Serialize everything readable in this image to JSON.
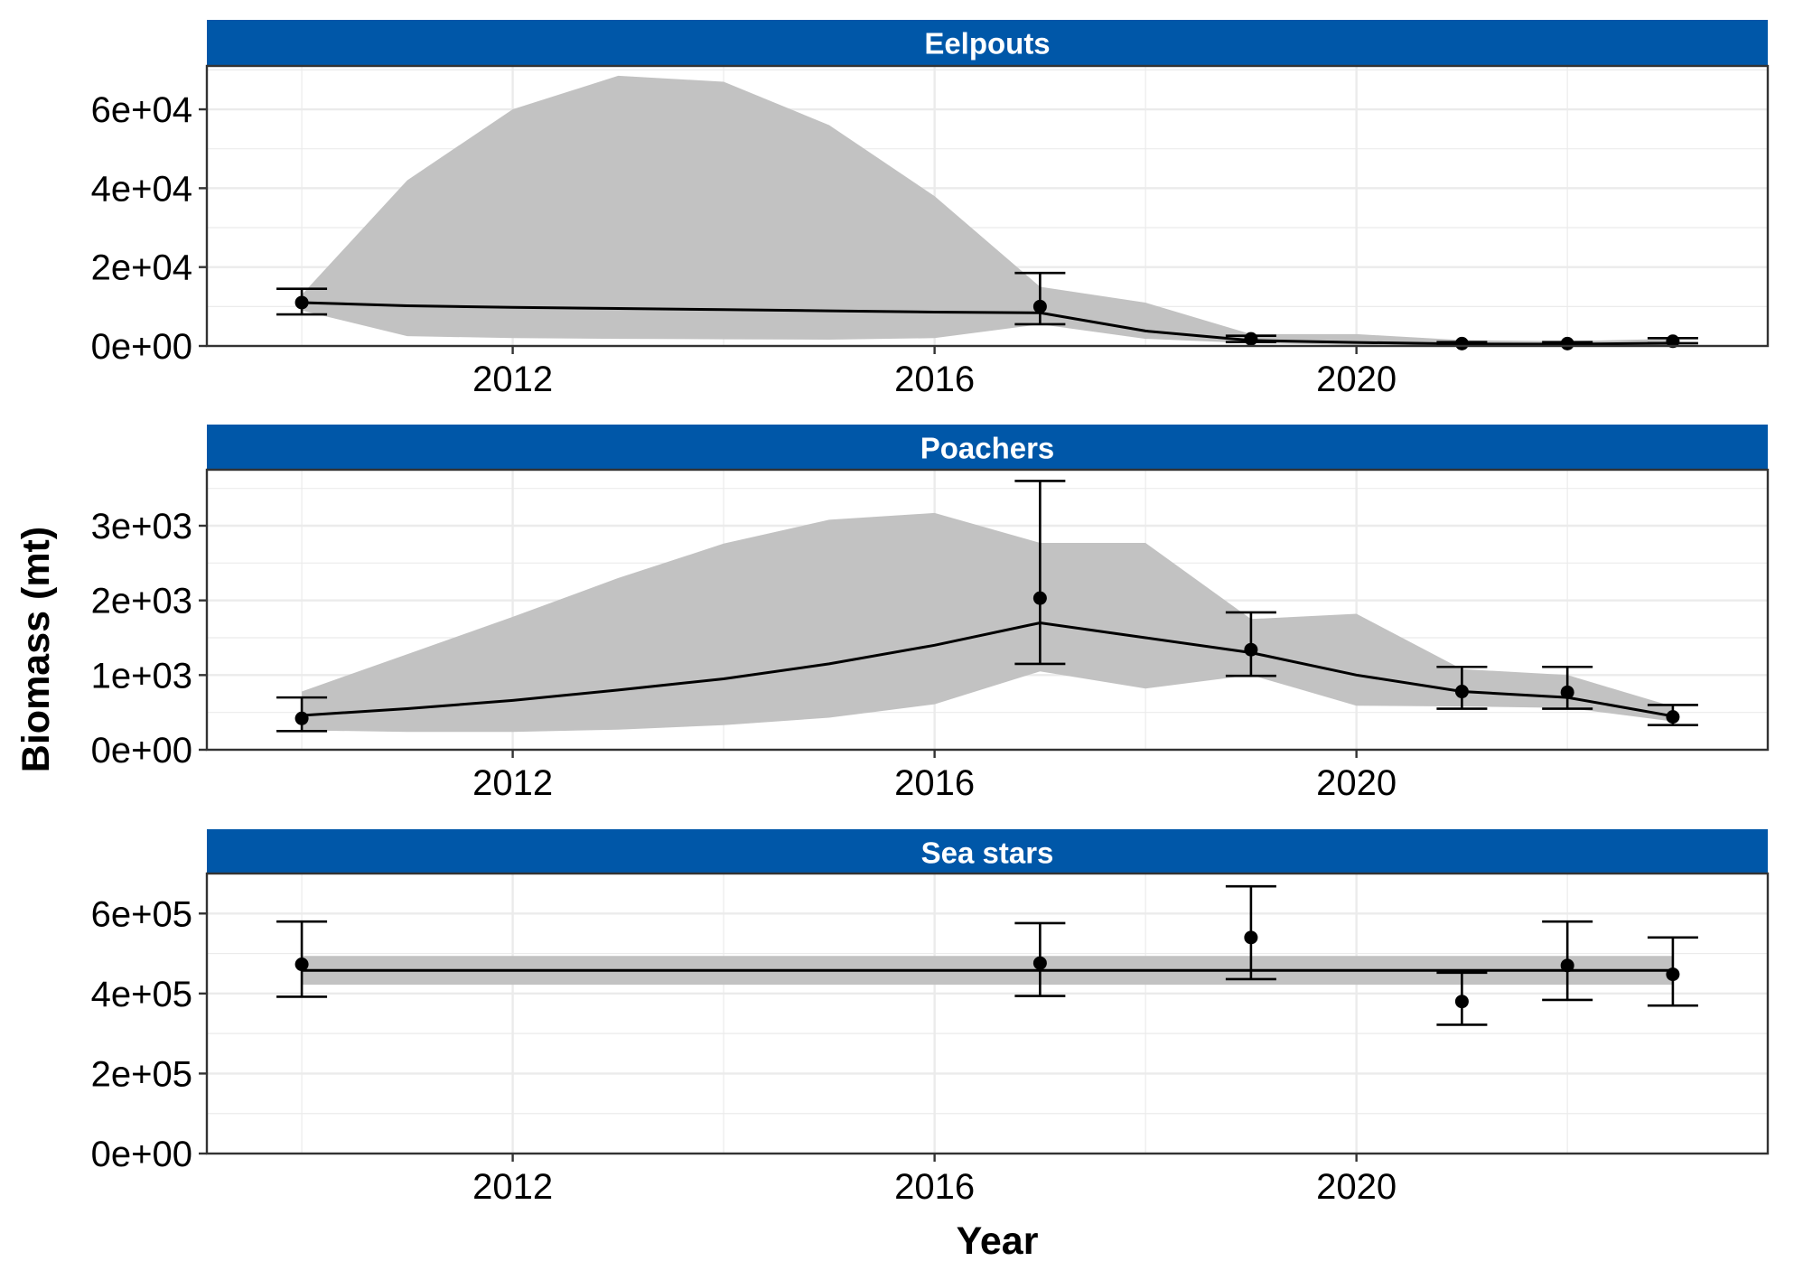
{
  "chart_data": {
    "type": "line",
    "xlabel": "Year",
    "ylabel": "Biomass (mt)",
    "xlim": [
      2009.1,
      2023.9
    ],
    "x_ticks": [
      2012,
      2016,
      2020
    ],
    "x_tick_labels": [
      "2012",
      "2016",
      "2020"
    ],
    "grid": true,
    "colors": {
      "strip": "#0057A8",
      "ribbon": "#C2C2C2",
      "line": "#000000",
      "grid": "#EBEBEB"
    },
    "panels": [
      {
        "name": "Eelpouts",
        "ylim": [
          0,
          71000
        ],
        "y_ticks": [
          0,
          20000,
          40000,
          60000
        ],
        "y_tick_labels": [
          "0e+00",
          "2e+04",
          "4e+04",
          "6e+04"
        ],
        "model": {
          "x": [
            2010,
            2011,
            2012,
            2013,
            2014,
            2015,
            2016,
            2017,
            2018,
            2019,
            2020,
            2021,
            2022,
            2023
          ],
          "estimate": [
            11000,
            10200,
            9800,
            9500,
            9200,
            8900,
            8600,
            8400,
            3800,
            1400,
            900,
            500,
            450,
            700
          ],
          "lower": [
            9000,
            2500,
            2000,
            1800,
            1700,
            1600,
            2000,
            5500,
            1800,
            700,
            300,
            200,
            200,
            300
          ],
          "upper": [
            13000,
            42000,
            60000,
            68500,
            67000,
            56000,
            38000,
            15000,
            11000,
            3000,
            3000,
            1500,
            1200,
            1800
          ]
        },
        "observed": [
          {
            "x": 2010,
            "y": 11000,
            "lower": 8000,
            "upper": 14500
          },
          {
            "x": 2017,
            "y": 10000,
            "lower": 5500,
            "upper": 18500
          },
          {
            "x": 2019,
            "y": 1800,
            "lower": 1000,
            "upper": 2600
          },
          {
            "x": 2021,
            "y": 600,
            "lower": 300,
            "upper": 1000
          },
          {
            "x": 2022,
            "y": 600,
            "lower": 300,
            "upper": 1000
          },
          {
            "x": 2023,
            "y": 1200,
            "lower": 700,
            "upper": 2000
          }
        ]
      },
      {
        "name": "Poachers",
        "ylim": [
          0,
          3750
        ],
        "y_ticks": [
          0,
          1000,
          2000,
          3000
        ],
        "y_tick_labels": [
          "0e+00",
          "1e+03",
          "2e+03",
          "3e+03"
        ],
        "model": {
          "x": [
            2010,
            2011,
            2012,
            2013,
            2014,
            2015,
            2016,
            2017,
            2018,
            2019,
            2020,
            2021,
            2022,
            2023
          ],
          "estimate": [
            460,
            550,
            660,
            800,
            950,
            1150,
            1400,
            1700,
            1500,
            1300,
            1000,
            780,
            700,
            450
          ],
          "lower": [
            260,
            240,
            240,
            270,
            330,
            430,
            610,
            1050,
            820,
            1000,
            590,
            580,
            560,
            380
          ],
          "upper": [
            780,
            1280,
            1780,
            2300,
            2760,
            3080,
            3170,
            2770,
            2770,
            1750,
            1820,
            1080,
            1000,
            580
          ]
        },
        "observed": [
          {
            "x": 2010,
            "y": 420,
            "lower": 250,
            "upper": 700
          },
          {
            "x": 2017,
            "y": 2030,
            "lower": 1150,
            "upper": 3600
          },
          {
            "x": 2019,
            "y": 1340,
            "lower": 990,
            "upper": 1840
          },
          {
            "x": 2021,
            "y": 780,
            "lower": 550,
            "upper": 1110
          },
          {
            "x": 2022,
            "y": 770,
            "lower": 550,
            "upper": 1110
          },
          {
            "x": 2023,
            "y": 440,
            "lower": 330,
            "upper": 600
          }
        ]
      },
      {
        "name": "Sea stars",
        "ylim": [
          0,
          700000
        ],
        "y_ticks": [
          0,
          200000,
          400000,
          600000
        ],
        "y_tick_labels": [
          "0e+00",
          "2e+05",
          "4e+05",
          "6e+05"
        ],
        "model": {
          "x": [
            2010,
            2023
          ],
          "estimate": [
            458000,
            458000
          ],
          "lower": [
            422000,
            422000
          ],
          "upper": [
            494000,
            494000
          ]
        },
        "observed": [
          {
            "x": 2010,
            "y": 473000,
            "lower": 392000,
            "upper": 580000
          },
          {
            "x": 2017,
            "y": 476000,
            "lower": 394000,
            "upper": 576000
          },
          {
            "x": 2019,
            "y": 540000,
            "lower": 436000,
            "upper": 668000
          },
          {
            "x": 2021,
            "y": 380000,
            "lower": 322000,
            "upper": 452000
          },
          {
            "x": 2022,
            "y": 470000,
            "lower": 384000,
            "upper": 580000
          },
          {
            "x": 2023,
            "y": 448000,
            "lower": 370000,
            "upper": 540000
          }
        ]
      }
    ]
  }
}
